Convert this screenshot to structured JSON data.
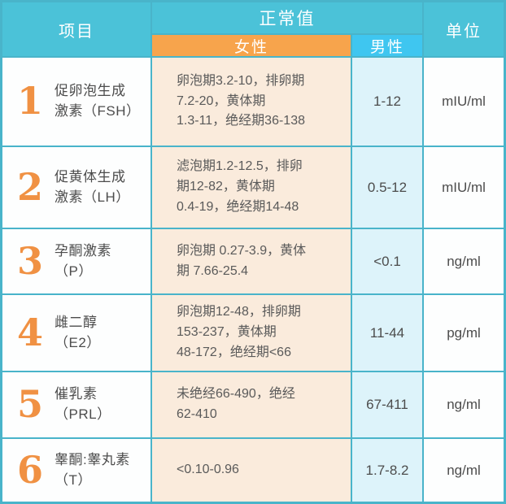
{
  "colors": {
    "teal": "#4bc2d8",
    "teal-border": "#49b4ca",
    "orange": "#f7a44c",
    "bright-blue": "#3fc6f0",
    "peach": "#faebdc",
    "light-blue": "#ddf3fa",
    "cell-white": "#fdfefe",
    "num-orange": "#f09143",
    "text-dark": "#4c4c4c",
    "text-value": "#5a5a5a",
    "header-text": "#ffffff"
  },
  "header": {
    "item": "项目",
    "normal_value": "正常值",
    "female": "女性",
    "male": "男性",
    "unit": "单位"
  },
  "rows": [
    {
      "num": "1",
      "name": "促卵泡生成\n激素（FSH）",
      "female": "卵泡期3.2-10，排卵期\n7.2-20，黄体期\n1.3-11，绝经期36-138",
      "male": "1-12",
      "unit": "mIU/ml"
    },
    {
      "num": "2",
      "name": "促黄体生成\n激素（LH）",
      "female": "滤泡期1.2-12.5，排卵\n期12-82，黄体期\n0.4-19，绝经期14-48",
      "male": "0.5-12",
      "unit": "mIU/ml"
    },
    {
      "num": "3",
      "name": "孕酮激素\n（P）",
      "female": "卵泡期 0.27-3.9，黄体\n期 7.66-25.4",
      "male": "<0.1",
      "unit": "ng/ml"
    },
    {
      "num": "4",
      "name": "雌二醇\n（E2）",
      "female": "卵泡期12-48，排卵期\n153-237，黄体期\n48-172，绝经期<66",
      "male": "11-44",
      "unit": "pg/ml"
    },
    {
      "num": "5",
      "name": "催乳素\n（PRL）",
      "female": "未绝经66-490，绝经\n62-410",
      "male": "67-411",
      "unit": "ng/ml"
    },
    {
      "num": "6",
      "name": "睾酮:睾丸素\n（T）",
      "female": "<0.10-0.96",
      "male": "1.7-8.2",
      "unit": "ng/ml"
    }
  ],
  "chart_data": {
    "type": "table",
    "title": "",
    "columns": [
      "项目",
      "正常值-女性",
      "正常值-男性",
      "单位"
    ],
    "rows": [
      [
        "促卵泡生成激素（FSH）",
        "卵泡期3.2-10，排卵期7.2-20，黄体期1.3-11，绝经期36-138",
        "1-12",
        "mIU/ml"
      ],
      [
        "促黄体生成激素（LH）",
        "滤泡期1.2-12.5，排卵期12-82，黄体期0.4-19，绝经期14-48",
        "0.5-12",
        "mIU/ml"
      ],
      [
        "孕酮激素（P）",
        "卵泡期 0.27-3.9，黄体期 7.66-25.4",
        "<0.1",
        "ng/ml"
      ],
      [
        "雌二醇（E2）",
        "卵泡期12-48，排卵期153-237，黄体期48-172，绝经期<66",
        "11-44",
        "pg/ml"
      ],
      [
        "催乳素（PRL）",
        "未绝经66-490，绝经62-410",
        "67-411",
        "ng/ml"
      ],
      [
        "睾酮:睾丸素（T）",
        "<0.10-0.96",
        "1.7-8.2",
        "ng/ml"
      ]
    ]
  }
}
